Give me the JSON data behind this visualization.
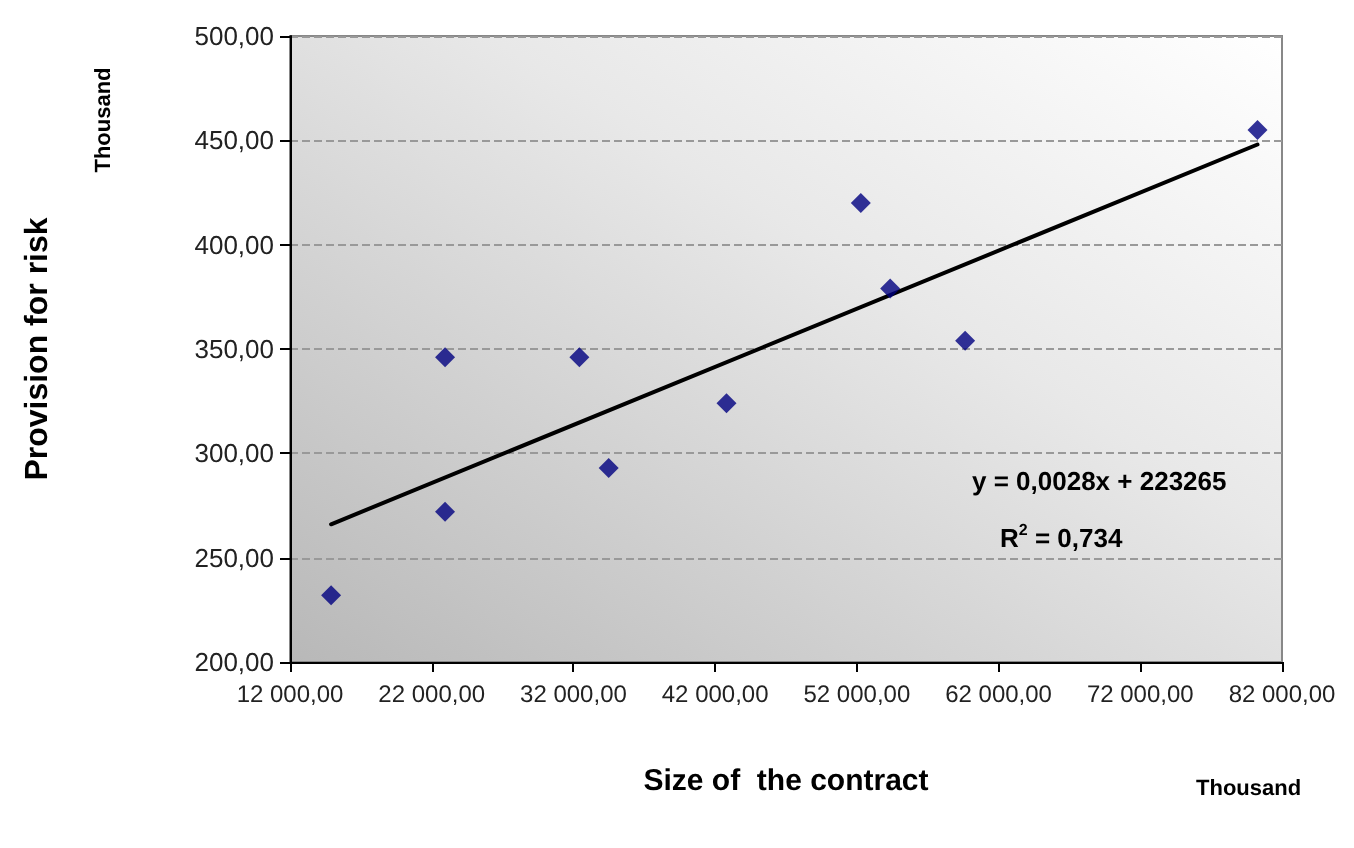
{
  "chart_data": {
    "type": "scatter",
    "xlabel": "Size of  the contract",
    "ylabel": "Provision for risk",
    "annotations": [
      "Thousand",
      "Thousand",
      "y = 0,0028x + 223265",
      "R$^{2}$ = 0,734"
    ],
    "series": [
      {
        "color": "#000080",
        "x": [
          14900,
          22940,
          22940,
          32420,
          34490,
          42800,
          52280,
          54350,
          59640,
          80270
        ],
        "values": [
          232,
          346,
          272,
          346,
          293,
          324,
          420,
          379,
          354,
          455
        ]
      },
      {
        "type": "line",
        "color": "#000000",
        "x": [
          14900,
          80270
        ],
        "values": [
          266,
          448
        ],
        "marker": "none"
      }
    ],
    "xlim": [
      12000,
      82000
    ],
    "xticks": [
      {
        "value": 12000,
        "label": "12 000,00"
      },
      {
        "value": 22000,
        "label": "22 000,00"
      },
      {
        "value": 32000,
        "label": "32 000,00"
      },
      {
        "value": 42000,
        "label": "42 000,00"
      },
      {
        "value": 52000,
        "label": "52 000,00"
      },
      {
        "value": 62000,
        "label": "62 000,00"
      },
      {
        "value": 72000,
        "label": "72 000,00"
      },
      {
        "value": 82000,
        "label": "82 000,00"
      }
    ],
    "ylim": [
      200,
      500
    ],
    "yticks": [
      {
        "value": 200,
        "label": "200,00"
      },
      {
        "value": 250,
        "label": "250,00"
      },
      {
        "value": 300,
        "label": "300,00"
      },
      {
        "value": 350,
        "label": "350,00"
      },
      {
        "value": 400,
        "label": "400,00"
      },
      {
        "value": 450,
        "label": "450,00"
      },
      {
        "value": 500,
        "label": "500,00"
      }
    ],
    "grid": "y",
    "marker": "diamond"
  }
}
